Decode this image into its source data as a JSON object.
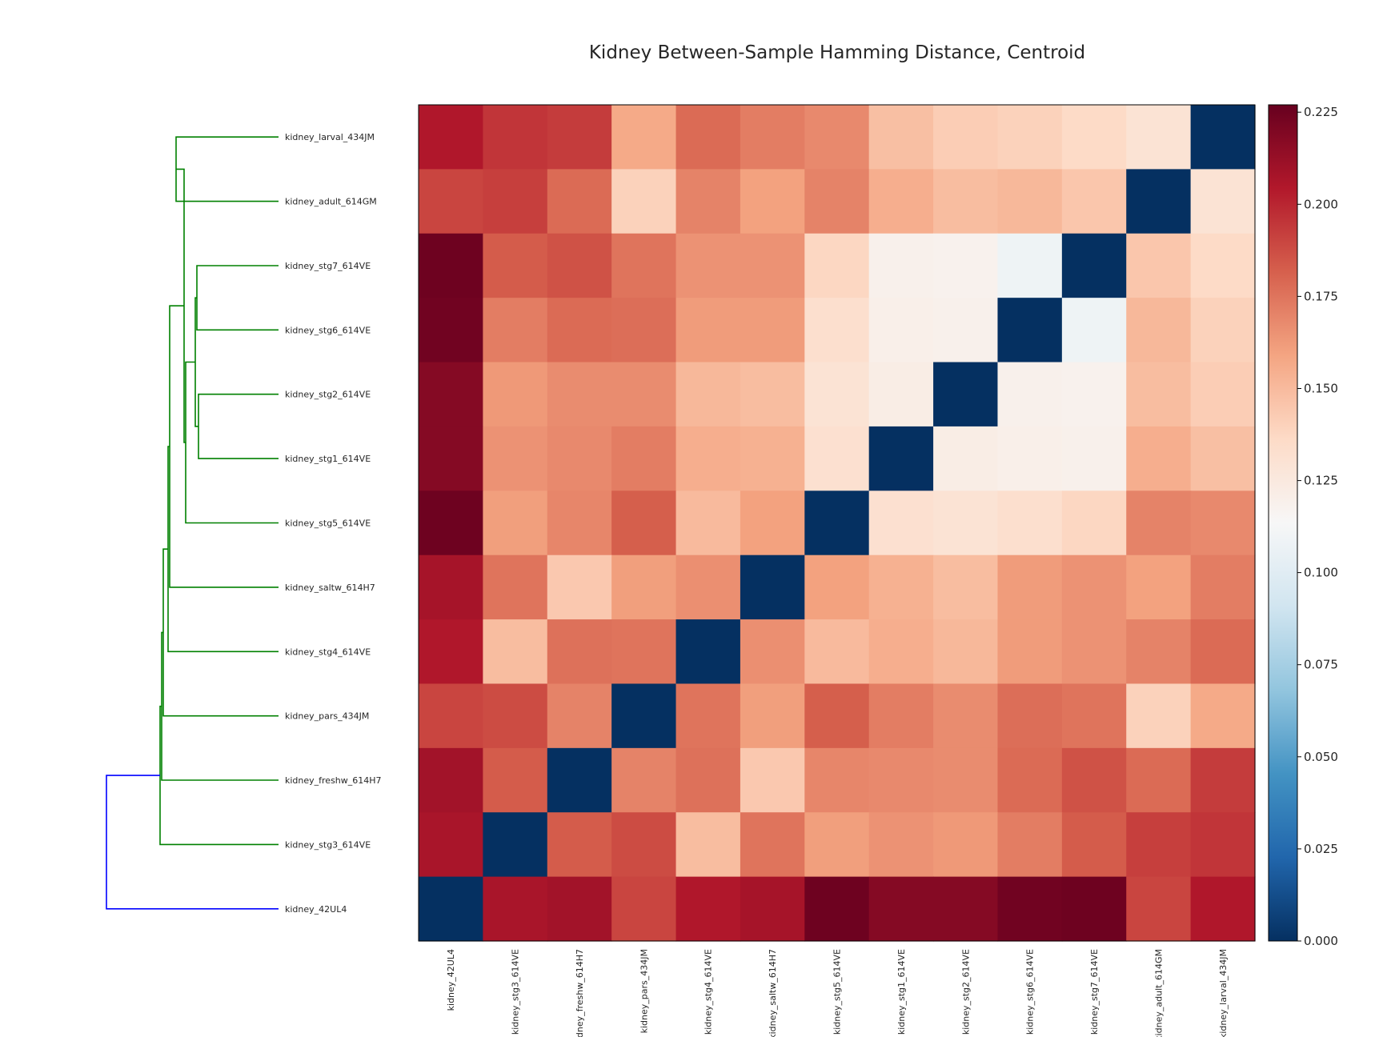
{
  "chart_data": {
    "type": "heatmap",
    "title": "Kidney Between-Sample Hamming Distance, Centroid",
    "row_labels": [
      "kidney_larval_434JM",
      "kidney_adult_614GM",
      "kidney_stg7_614VE",
      "kidney_stg6_614VE",
      "kidney_stg2_614VE",
      "kidney_stg1_614VE",
      "kidney_stg5_614VE",
      "kidney_saltw_614H7",
      "kidney_stg4_614VE",
      "kidney_pars_434JM",
      "kidney_freshw_614H7",
      "kidney_stg3_614VE",
      "kidney_42UL4"
    ],
    "col_labels": [
      "kidney_42UL4",
      "kidney_stg3_614VE",
      "kidney_freshw_614H7",
      "kidney_pars_434JM",
      "kidney_stg4_614VE",
      "kidney_saltw_614H7",
      "kidney_stg5_614VE",
      "kidney_stg1_614VE",
      "kidney_stg2_614VE",
      "kidney_stg6_614VE",
      "kidney_stg7_614VE",
      "kidney_adult_614GM",
      "kidney_larval_434JM"
    ],
    "values": [
      [
        0.205,
        0.195,
        0.193,
        0.157,
        0.178,
        0.172,
        0.168,
        0.148,
        0.142,
        0.14,
        0.136,
        0.13,
        0.0
      ],
      [
        0.19,
        0.192,
        0.178,
        0.14,
        0.17,
        0.16,
        0.17,
        0.155,
        0.149,
        0.151,
        0.145,
        0.0,
        0.13
      ],
      [
        0.225,
        0.183,
        0.186,
        0.175,
        0.165,
        0.165,
        0.138,
        0.119,
        0.118,
        0.108,
        0.0,
        0.145,
        0.136
      ],
      [
        0.224,
        0.172,
        0.178,
        0.177,
        0.162,
        0.162,
        0.133,
        0.12,
        0.119,
        0.0,
        0.108,
        0.151,
        0.14
      ],
      [
        0.218,
        0.163,
        0.167,
        0.167,
        0.151,
        0.149,
        0.13,
        0.122,
        0.0,
        0.119,
        0.118,
        0.149,
        0.142
      ],
      [
        0.218,
        0.165,
        0.168,
        0.172,
        0.155,
        0.154,
        0.132,
        0.0,
        0.122,
        0.12,
        0.119,
        0.155,
        0.148
      ],
      [
        0.225,
        0.161,
        0.169,
        0.182,
        0.15,
        0.16,
        0.0,
        0.132,
        0.13,
        0.133,
        0.138,
        0.17,
        0.168
      ],
      [
        0.208,
        0.175,
        0.144,
        0.161,
        0.166,
        0.0,
        0.16,
        0.154,
        0.149,
        0.162,
        0.165,
        0.16,
        0.172
      ],
      [
        0.205,
        0.149,
        0.176,
        0.175,
        0.0,
        0.166,
        0.15,
        0.155,
        0.151,
        0.162,
        0.165,
        0.17,
        0.178
      ],
      [
        0.19,
        0.188,
        0.17,
        0.0,
        0.175,
        0.161,
        0.182,
        0.172,
        0.167,
        0.177,
        0.175,
        0.14,
        0.157
      ],
      [
        0.209,
        0.183,
        0.0,
        0.17,
        0.176,
        0.144,
        0.169,
        0.168,
        0.167,
        0.178,
        0.186,
        0.178,
        0.193
      ],
      [
        0.207,
        0.0,
        0.183,
        0.188,
        0.149,
        0.175,
        0.161,
        0.165,
        0.163,
        0.172,
        0.183,
        0.192,
        0.195
      ],
      [
        0.0,
        0.207,
        0.209,
        0.19,
        0.205,
        0.208,
        0.225,
        0.218,
        0.218,
        0.224,
        0.225,
        0.19,
        0.205
      ]
    ],
    "colorbar": {
      "colormap": "RdBu_r",
      "vmin": 0.0,
      "vmax": 0.227,
      "ticks": [
        "0.000",
        "0.025",
        "0.050",
        "0.075",
        "0.100",
        "0.125",
        "0.150",
        "0.175",
        "0.200",
        "0.225"
      ]
    },
    "dendrogram": {
      "orientation": "left",
      "colors": {
        "cluster": "#008000",
        "root": "#0000ff"
      }
    }
  }
}
